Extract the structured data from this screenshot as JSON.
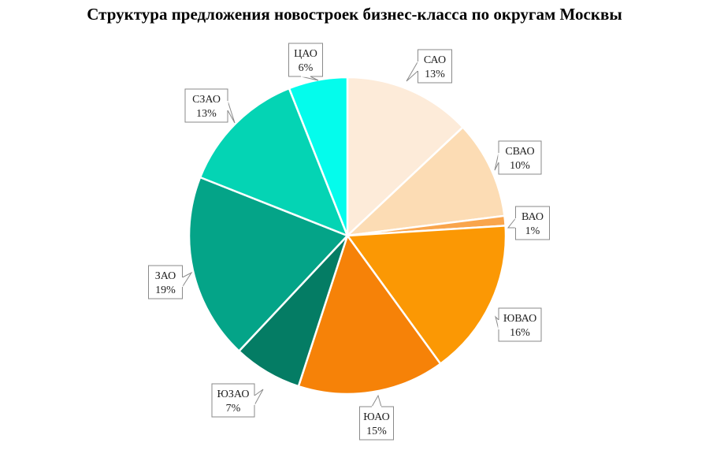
{
  "chart_data": {
    "type": "pie",
    "title": "Структура предложения новостроек бизнес-класса по округам Москвы",
    "slices": [
      {
        "label": "САО",
        "value": 13,
        "value_label": "13%",
        "color": "#fdebd9"
      },
      {
        "label": "СВАО",
        "value": 10,
        "value_label": "10%",
        "color": "#fcdcb4"
      },
      {
        "label": "ВАО",
        "value": 1,
        "value_label": "1%",
        "color": "#f9a54c"
      },
      {
        "label": "ЮВАО",
        "value": 16,
        "value_label": "16%",
        "color": "#fb9804"
      },
      {
        "label": "ЮАО",
        "value": 15,
        "value_label": "15%",
        "color": "#f68208"
      },
      {
        "label": "ЮЗАО",
        "value": 7,
        "value_label": "7%",
        "color": "#047c64"
      },
      {
        "label": "ЗАО",
        "value": 19,
        "value_label": "19%",
        "color": "#04a488"
      },
      {
        "label": "СЗАО",
        "value": 13,
        "value_label": "13%",
        "color": "#04d4b4"
      },
      {
        "label": "ЦАО",
        "value": 6,
        "value_label": "6%",
        "color": "#04fcec"
      }
    ],
    "start_angle_deg": 0,
    "direction": "clockwise",
    "legend": "none",
    "data_labels": "callouts"
  }
}
